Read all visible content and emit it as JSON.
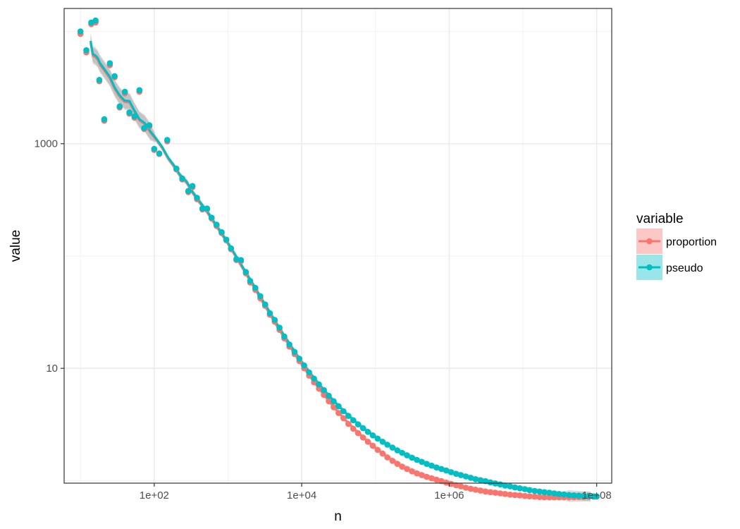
{
  "chart_data": {
    "type": "scatter",
    "title": "",
    "xlabel": "n",
    "ylabel": "value",
    "x_scale": "log10",
    "y_scale": "log10",
    "xlim": [
      6,
      160000000
    ],
    "ylim": [
      0.95,
      16000
    ],
    "x_ticks": [
      {
        "value": 100,
        "label": "1e+02"
      },
      {
        "value": 10000,
        "label": "1e+04"
      },
      {
        "value": 1000000,
        "label": "1e+06"
      },
      {
        "value": 100000000,
        "label": "1e+08"
      }
    ],
    "y_ticks": [
      {
        "value": 10,
        "label": "10"
      },
      {
        "value": 1000,
        "label": "1000"
      }
    ],
    "grid": true,
    "legend": {
      "title": "variable",
      "position": "right",
      "entries": [
        {
          "name": "proportion",
          "color": "#F8766D",
          "fill": "#F8766D"
        },
        {
          "name": "pseudo",
          "color": "#00BFC4",
          "fill": "#00BFC4"
        }
      ]
    },
    "series": [
      {
        "name": "proportion",
        "color": "#F8766D",
        "points": [
          [
            10,
            9500
          ],
          [
            12,
            6500
          ],
          [
            14,
            11600
          ],
          [
            16,
            12000
          ],
          [
            18,
            3600
          ],
          [
            21,
            1600
          ],
          [
            25,
            5000
          ],
          [
            29,
            3900
          ],
          [
            34,
            2100
          ],
          [
            40,
            2800
          ],
          [
            46,
            1850
          ],
          [
            54,
            1700
          ],
          [
            63,
            2900
          ],
          [
            73,
            1350
          ],
          [
            86,
            1430
          ],
          [
            100,
            880
          ],
          [
            117,
            810
          ],
          [
            150,
            1050
          ],
          [
            200,
            590
          ],
          [
            240,
            480
          ],
          [
            290,
            370
          ],
          [
            330,
            410
          ],
          [
            380,
            320
          ],
          [
            450,
            260
          ],
          [
            520,
            260
          ],
          [
            600,
            215
          ],
          [
            700,
            185
          ],
          [
            820,
            160
          ],
          [
            950,
            138
          ],
          [
            1100,
            115
          ],
          [
            1300,
            92
          ],
          [
            1500,
            90
          ],
          [
            1750,
            70
          ],
          [
            2000,
            58
          ],
          [
            2350,
            50
          ],
          [
            2750,
            42
          ],
          [
            3200,
            36
          ],
          [
            3700,
            30
          ],
          [
            4300,
            26
          ],
          [
            5000,
            22
          ],
          [
            5800,
            18.5
          ],
          [
            6800,
            15.6
          ],
          [
            8000,
            13.4
          ],
          [
            9300,
            11.6
          ],
          [
            10800,
            10.0
          ],
          [
            12600,
            8.6
          ],
          [
            14700,
            7.5
          ],
          [
            17100,
            6.6
          ],
          [
            20000,
            5.8
          ],
          [
            23300,
            5.1
          ],
          [
            27100,
            4.5
          ],
          [
            31600,
            4.0
          ],
          [
            36800,
            3.6
          ],
          [
            42900,
            3.2
          ],
          [
            50000,
            2.9
          ],
          [
            58200,
            2.65
          ],
          [
            67800,
            2.42
          ],
          [
            79000,
            2.22
          ],
          [
            92000,
            2.04
          ],
          [
            107000,
            1.88
          ],
          [
            125000,
            1.74
          ],
          [
            145000,
            1.61
          ],
          [
            170000,
            1.5
          ],
          [
            198000,
            1.41
          ],
          [
            230000,
            1.33
          ],
          [
            268000,
            1.27
          ],
          [
            313000,
            1.21
          ],
          [
            364000,
            1.16
          ],
          [
            425000,
            1.12
          ],
          [
            495000,
            1.08
          ],
          [
            577000,
            1.05
          ],
          [
            672000,
            1.02
          ],
          [
            783000,
            0.99
          ],
          [
            913000,
            0.96
          ],
          [
            1060000,
            0.935
          ],
          [
            1240000,
            0.91
          ],
          [
            1440000,
            0.89
          ],
          [
            1680000,
            0.865
          ],
          [
            1960000,
            0.845
          ],
          [
            2280000,
            0.83
          ],
          [
            2660000,
            0.815
          ],
          [
            3100000,
            0.8
          ],
          [
            3620000,
            0.79
          ],
          [
            4220000,
            0.78
          ],
          [
            4920000,
            0.77
          ],
          [
            5730000,
            0.76
          ],
          [
            6680000,
            0.75
          ],
          [
            7790000,
            0.745
          ],
          [
            9080000,
            0.74
          ],
          [
            10600000,
            0.73
          ],
          [
            12300000,
            0.725
          ],
          [
            14400000,
            0.72
          ],
          [
            16800000,
            0.715
          ],
          [
            19500000,
            0.71
          ],
          [
            22800000,
            0.71
          ],
          [
            26600000,
            0.71
          ],
          [
            31000000,
            0.71
          ],
          [
            36100000,
            0.71
          ],
          [
            42100000,
            0.71
          ],
          [
            49100000,
            0.712
          ],
          [
            57200000,
            0.715
          ],
          [
            66700000,
            0.715
          ],
          [
            77700000,
            0.72
          ],
          [
            90600000,
            0.72
          ],
          [
            100000000,
            0.72
          ]
        ]
      },
      {
        "name": "pseudo",
        "color": "#00BFC4",
        "points": [
          [
            10,
            10000
          ],
          [
            12,
            6800
          ],
          [
            14,
            12000
          ],
          [
            16,
            12500
          ],
          [
            18,
            3700
          ],
          [
            21,
            1650
          ],
          [
            25,
            5200
          ],
          [
            29,
            4000
          ],
          [
            34,
            2150
          ],
          [
            40,
            2900
          ],
          [
            46,
            1900
          ],
          [
            54,
            1750
          ],
          [
            63,
            3000
          ],
          [
            73,
            1380
          ],
          [
            86,
            1460
          ],
          [
            100,
            900
          ],
          [
            117,
            820
          ],
          [
            150,
            1080
          ],
          [
            200,
            600
          ],
          [
            240,
            490
          ],
          [
            290,
            380
          ],
          [
            330,
            420
          ],
          [
            380,
            330
          ],
          [
            450,
            265
          ],
          [
            520,
            265
          ],
          [
            600,
            220
          ],
          [
            700,
            190
          ],
          [
            820,
            163
          ],
          [
            950,
            140
          ],
          [
            1100,
            117
          ],
          [
            1300,
            94
          ],
          [
            1500,
            92
          ],
          [
            1750,
            72
          ],
          [
            2000,
            60
          ],
          [
            2350,
            52
          ],
          [
            2750,
            44
          ],
          [
            3200,
            37
          ],
          [
            3700,
            31
          ],
          [
            4300,
            27
          ],
          [
            5000,
            23
          ],
          [
            5800,
            19.2
          ],
          [
            6800,
            16.3
          ],
          [
            8000,
            14.0
          ],
          [
            9300,
            12.2
          ],
          [
            10800,
            10.6
          ],
          [
            12600,
            9.2
          ],
          [
            14700,
            8.1
          ],
          [
            17100,
            7.2
          ],
          [
            20000,
            6.4
          ],
          [
            23300,
            5.7
          ],
          [
            27100,
            5.1
          ],
          [
            31600,
            4.6
          ],
          [
            36800,
            4.15
          ],
          [
            42900,
            3.77
          ],
          [
            50000,
            3.45
          ],
          [
            58200,
            3.17
          ],
          [
            67800,
            2.93
          ],
          [
            79000,
            2.72
          ],
          [
            92000,
            2.53
          ],
          [
            107000,
            2.37
          ],
          [
            125000,
            2.22
          ],
          [
            145000,
            2.09
          ],
          [
            170000,
            1.97
          ],
          [
            198000,
            1.86
          ],
          [
            230000,
            1.77
          ],
          [
            268000,
            1.68
          ],
          [
            313000,
            1.6
          ],
          [
            364000,
            1.53
          ],
          [
            425000,
            1.47
          ],
          [
            495000,
            1.41
          ],
          [
            577000,
            1.36
          ],
          [
            672000,
            1.31
          ],
          [
            783000,
            1.27
          ],
          [
            913000,
            1.23
          ],
          [
            1060000,
            1.19
          ],
          [
            1240000,
            1.15
          ],
          [
            1440000,
            1.12
          ],
          [
            1680000,
            1.09
          ],
          [
            1960000,
            1.06
          ],
          [
            2280000,
            1.03
          ],
          [
            2660000,
            1.01
          ],
          [
            3100000,
            0.99
          ],
          [
            3620000,
            0.965
          ],
          [
            4220000,
            0.945
          ],
          [
            4920000,
            0.925
          ],
          [
            5730000,
            0.905
          ],
          [
            6680000,
            0.89
          ],
          [
            7790000,
            0.87
          ],
          [
            9080000,
            0.855
          ],
          [
            10600000,
            0.84
          ],
          [
            12300000,
            0.825
          ],
          [
            14400000,
            0.81
          ],
          [
            16800000,
            0.8
          ],
          [
            19500000,
            0.79
          ],
          [
            22800000,
            0.78
          ],
          [
            26600000,
            0.77
          ],
          [
            31000000,
            0.76
          ],
          [
            36100000,
            0.755
          ],
          [
            42100000,
            0.745
          ],
          [
            49100000,
            0.74
          ],
          [
            57200000,
            0.735
          ],
          [
            66700000,
            0.73
          ],
          [
            77700000,
            0.73
          ],
          [
            90600000,
            0.725
          ],
          [
            100000000,
            0.725
          ]
        ]
      }
    ]
  }
}
